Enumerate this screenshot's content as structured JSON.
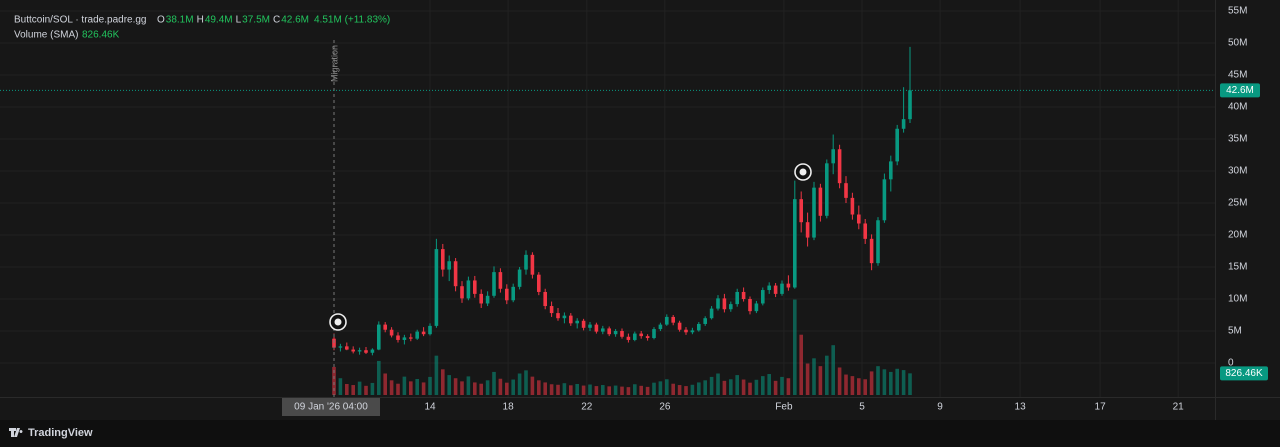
{
  "chart_data": {
    "type": "candlestick",
    "title": "Buttcoin/SOL · trade.padre.gg",
    "ohlc_keys": [
      "O",
      "H",
      "L",
      "C"
    ],
    "ohlc_labels": [
      "38.1M",
      "49.4M",
      "37.5M",
      "42.6M"
    ],
    "change_label": "4.51M (+11.83%)",
    "volume_title": "Volume (SMA)",
    "volume_title_value": "826.46K",
    "annotation": "Migration",
    "brand": "TradingView",
    "crosshair_label": "09 Jan '26   04:00",
    "up_color": "#089981",
    "down_color": "#f23645",
    "grid": true,
    "ylim": [
      0,
      55
    ],
    "yticks": [
      0,
      {
        "value": 5,
        "label": "5M"
      },
      {
        "value": 10,
        "label": "10M"
      },
      {
        "value": 15,
        "label": "15M"
      },
      {
        "value": 20,
        "label": "20M"
      },
      {
        "value": 25,
        "label": "25M"
      },
      {
        "value": 30,
        "label": "30M"
      },
      {
        "value": 35,
        "label": "35M"
      },
      {
        "value": 40,
        "label": "40M"
      },
      {
        "value": 45,
        "label": "45M"
      },
      {
        "value": 50,
        "label": "50M"
      },
      {
        "value": 55,
        "label": "55M"
      }
    ],
    "xticks": [
      {
        "value": 15,
        "label": "14"
      },
      {
        "value": 27.2,
        "label": "18"
      },
      {
        "value": 39.5,
        "label": "22"
      },
      {
        "value": 51.7,
        "label": "26"
      },
      {
        "value": 70.3,
        "label": "Feb"
      },
      {
        "value": 82.5,
        "label": "5"
      },
      {
        "value": 94.7,
        "label": "9"
      },
      {
        "value": 107.2,
        "label": "13"
      },
      {
        "value": 119.7,
        "label": "17"
      },
      {
        "value": 131.9,
        "label": "21"
      }
    ],
    "last_price": {
      "value": 42.6,
      "label": "42.6M"
    },
    "last_volume": {
      "value": 826.46,
      "label": "826.46K"
    },
    "volume_lim": [
      0,
      3700
    ],
    "candles": [
      [
        3.8,
        4.6,
        2.0,
        2.4
      ],
      [
        2.4,
        3.0,
        1.8,
        2.6
      ],
      [
        2.6,
        3.2,
        2.0,
        2.1
      ],
      [
        2.1,
        2.6,
        1.5,
        1.8
      ],
      [
        1.8,
        2.4,
        1.3,
        2.0
      ],
      [
        2.0,
        2.5,
        1.4,
        1.6
      ],
      [
        1.6,
        2.3,
        1.2,
        2.1
      ],
      [
        2.1,
        6.5,
        2.0,
        6.0
      ],
      [
        6.0,
        6.4,
        4.8,
        5.2
      ],
      [
        5.2,
        5.6,
        4.0,
        4.3
      ],
      [
        4.3,
        4.8,
        3.2,
        3.6
      ],
      [
        3.6,
        4.4,
        2.9,
        4.0
      ],
      [
        4.0,
        4.6,
        3.4,
        3.8
      ],
      [
        3.8,
        5.2,
        3.6,
        4.9
      ],
      [
        4.9,
        5.6,
        4.2,
        4.5
      ],
      [
        4.5,
        6.2,
        4.3,
        5.8
      ],
      [
        5.8,
        19.4,
        5.5,
        17.8
      ],
      [
        17.8,
        18.6,
        13.5,
        14.6
      ],
      [
        14.6,
        16.8,
        12.8,
        15.9
      ],
      [
        15.9,
        16.4,
        11.2,
        12.0
      ],
      [
        12.0,
        12.8,
        9.4,
        10.1
      ],
      [
        10.1,
        13.5,
        9.8,
        12.9
      ],
      [
        12.9,
        13.6,
        10.2,
        10.8
      ],
      [
        10.8,
        11.5,
        8.6,
        9.3
      ],
      [
        9.3,
        11.2,
        8.9,
        10.5
      ],
      [
        10.5,
        15.1,
        10.2,
        14.2
      ],
      [
        14.2,
        14.8,
        11.0,
        11.6
      ],
      [
        11.6,
        12.3,
        9.2,
        9.8
      ],
      [
        9.8,
        12.4,
        9.5,
        11.9
      ],
      [
        11.9,
        15.0,
        11.5,
        14.6
      ],
      [
        14.6,
        17.6,
        13.8,
        16.9
      ],
      [
        16.9,
        17.3,
        13.2,
        13.8
      ],
      [
        13.8,
        14.2,
        10.6,
        11.1
      ],
      [
        11.1,
        11.6,
        8.4,
        8.9
      ],
      [
        8.9,
        9.6,
        7.2,
        7.8
      ],
      [
        7.8,
        8.6,
        6.6,
        7.0
      ],
      [
        7.0,
        7.9,
        6.2,
        7.4
      ],
      [
        7.4,
        7.8,
        5.8,
        6.2
      ],
      [
        6.2,
        7.0,
        5.4,
        6.6
      ],
      [
        6.6,
        6.9,
        5.1,
        5.5
      ],
      [
        5.5,
        6.4,
        5.0,
        6.0
      ],
      [
        6.0,
        6.3,
        4.6,
        4.9
      ],
      [
        4.9,
        5.8,
        4.5,
        5.4
      ],
      [
        5.4,
        5.7,
        4.2,
        4.5
      ],
      [
        4.5,
        5.3,
        4.1,
        5.0
      ],
      [
        5.0,
        5.4,
        3.8,
        4.1
      ],
      [
        4.1,
        4.6,
        3.2,
        3.6
      ],
      [
        3.6,
        4.9,
        3.4,
        4.6
      ],
      [
        4.6,
        5.0,
        3.8,
        4.2
      ],
      [
        4.2,
        4.5,
        3.5,
        3.9
      ],
      [
        3.9,
        5.6,
        3.7,
        5.3
      ],
      [
        5.3,
        6.3,
        5.0,
        6.0
      ],
      [
        6.0,
        7.6,
        5.8,
        7.2
      ],
      [
        7.2,
        7.5,
        5.9,
        6.3
      ],
      [
        6.3,
        6.6,
        4.9,
        5.2
      ],
      [
        5.2,
        5.6,
        4.4,
        4.8
      ],
      [
        4.8,
        5.5,
        4.5,
        5.1
      ],
      [
        5.1,
        6.4,
        4.9,
        6.1
      ],
      [
        6.1,
        7.3,
        5.8,
        7.0
      ],
      [
        7.0,
        8.9,
        6.8,
        8.5
      ],
      [
        8.5,
        10.6,
        8.2,
        10.1
      ],
      [
        10.1,
        10.8,
        7.9,
        8.4
      ],
      [
        8.4,
        9.6,
        8.0,
        9.2
      ],
      [
        9.2,
        11.6,
        8.8,
        11.1
      ],
      [
        11.1,
        11.8,
        9.6,
        10.0
      ],
      [
        10.0,
        10.4,
        7.6,
        8.1
      ],
      [
        8.1,
        9.7,
        7.8,
        9.3
      ],
      [
        9.3,
        11.8,
        9.0,
        11.4
      ],
      [
        11.4,
        12.6,
        10.8,
        12.1
      ],
      [
        12.1,
        12.5,
        10.3,
        10.8
      ],
      [
        10.8,
        12.9,
        10.5,
        12.4
      ],
      [
        12.4,
        13.7,
        11.3,
        11.8
      ],
      [
        11.8,
        28.5,
        11.6,
        25.6
      ],
      [
        25.6,
        26.8,
        20.4,
        22.0
      ],
      [
        22.0,
        23.5,
        18.2,
        19.6
      ],
      [
        19.6,
        28.3,
        19.2,
        27.4
      ],
      [
        27.4,
        28.0,
        22.1,
        23.0
      ],
      [
        23.0,
        31.8,
        22.6,
        31.2
      ],
      [
        31.2,
        35.7,
        29.5,
        33.4
      ],
      [
        33.4,
        34.1,
        27.3,
        28.1
      ],
      [
        28.1,
        29.2,
        25.0,
        25.8
      ],
      [
        25.8,
        26.6,
        22.4,
        23.2
      ],
      [
        23.2,
        24.6,
        20.9,
        21.8
      ],
      [
        21.8,
        22.5,
        18.6,
        19.4
      ],
      [
        19.4,
        20.1,
        14.5,
        15.6
      ],
      [
        15.6,
        22.8,
        15.2,
        22.3
      ],
      [
        22.3,
        29.6,
        21.9,
        28.7
      ],
      [
        28.7,
        32.4,
        26.8,
        31.5
      ],
      [
        31.5,
        37.2,
        30.9,
        36.6
      ],
      [
        36.6,
        43.1,
        36.0,
        38.1
      ],
      [
        38.1,
        49.4,
        37.5,
        42.6
      ]
    ],
    "volumes": [
      1070,
      640,
      420,
      380,
      510,
      350,
      460,
      1300,
      820,
      560,
      430,
      700,
      520,
      610,
      480,
      690,
      1500,
      980,
      760,
      640,
      520,
      710,
      480,
      430,
      560,
      880,
      620,
      470,
      590,
      820,
      940,
      700,
      560,
      480,
      410,
      390,
      450,
      370,
      420,
      360,
      400,
      340,
      380,
      330,
      360,
      320,
      300,
      410,
      350,
      310,
      470,
      520,
      600,
      430,
      380,
      340,
      390,
      480,
      560,
      690,
      820,
      540,
      600,
      760,
      590,
      470,
      580,
      720,
      800,
      540,
      690,
      640,
      3640,
      2300,
      1200,
      1400,
      1100,
      1500,
      1900,
      1050,
      780,
      720,
      640,
      600,
      900,
      1100,
      980,
      880,
      1000,
      950,
      826.46
    ]
  }
}
